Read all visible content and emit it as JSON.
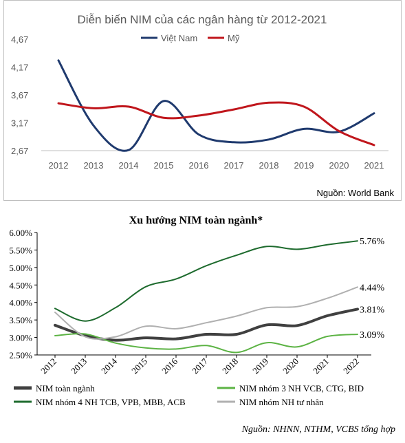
{
  "chart_data": [
    {
      "type": "line",
      "title": "Diễn biến NIM của các ngân hàng từ 2012-2021",
      "source": "Nguồn: World Bank",
      "categories": [
        "2012",
        "2013",
        "2014",
        "2015",
        "2016",
        "2017",
        "2018",
        "2019",
        "2020",
        "2021"
      ],
      "yticks": [
        "4,67",
        "4,17",
        "3,67",
        "3,17",
        "2,67"
      ],
      "ylim": [
        2.67,
        4.67
      ],
      "legend_position": "top",
      "grid": false,
      "series": [
        {
          "name": "Việt Nam",
          "color": "#1f3a6e",
          "values": [
            4.29,
            3.12,
            2.68,
            3.56,
            2.96,
            2.82,
            2.87,
            3.06,
            3.01,
            3.34
          ]
        },
        {
          "name": "Mỹ",
          "color": "#c0161c",
          "values": [
            3.52,
            3.43,
            3.46,
            3.26,
            3.3,
            3.41,
            3.53,
            3.46,
            3.02,
            2.77
          ]
        }
      ]
    },
    {
      "type": "line",
      "title": "Xu hướng NIM toàn ngành*",
      "source": "Nguồn: NHNN, NTHM, VCBS tổng hợp",
      "categories": [
        "2012",
        "2013",
        "2014",
        "2015",
        "2016",
        "2017",
        "2018",
        "2019",
        "2020",
        "2021",
        "2022"
      ],
      "yticks": [
        "6.00%",
        "5.50%",
        "5.00%",
        "4.50%",
        "4.00%",
        "3.50%",
        "3.00%",
        "2.50%"
      ],
      "ylim": [
        2.5,
        6.0
      ],
      "legend_position": "bottom",
      "grid": false,
      "series": [
        {
          "name": "NIM toàn ngành",
          "color": "#404040",
          "end_label": "3.81%",
          "values": [
            3.35,
            3.05,
            2.92,
            2.99,
            2.96,
            3.09,
            3.09,
            3.36,
            3.34,
            3.62,
            3.81
          ]
        },
        {
          "name": "NIM nhóm 3 NH VCB, CTG, BID",
          "color": "#5cb344",
          "end_label": "3.09%",
          "values": [
            3.05,
            3.1,
            2.84,
            2.7,
            2.67,
            2.77,
            2.57,
            2.85,
            2.73,
            3.03,
            3.09
          ]
        },
        {
          "name": "NIM nhóm 4 NH TCB, VPB, MBB, ACB",
          "color": "#1e6b2e",
          "end_label": "5.76%",
          "values": [
            3.83,
            3.47,
            3.85,
            4.45,
            4.67,
            5.05,
            5.35,
            5.6,
            5.52,
            5.65,
            5.76
          ]
        },
        {
          "name": "NIM nhóm NH tư nhân",
          "color": "#b0b0b0",
          "end_label": "4.44%",
          "values": [
            3.72,
            3.02,
            3.02,
            3.32,
            3.25,
            3.42,
            3.61,
            3.85,
            3.88,
            4.12,
            4.44
          ]
        }
      ]
    }
  ]
}
